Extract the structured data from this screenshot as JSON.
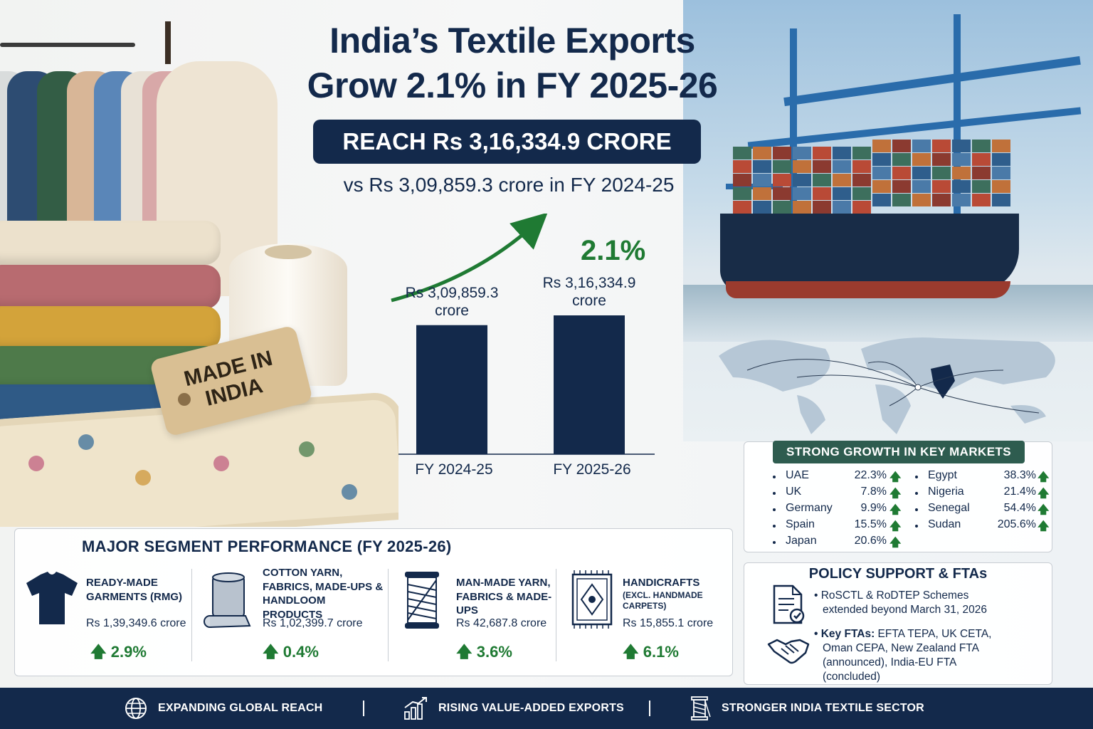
{
  "headline": {
    "title_line1": "India’s Textile Exports",
    "title_line2": "Grow 2.1% in FY 2025-26",
    "reach": "REACH Rs 3,16,334.9 CRORE",
    "comparison": "vs Rs 3,09,859.3 crore in FY 2024-25"
  },
  "tag": {
    "line1": "MADE IN",
    "line2": "INDIA"
  },
  "chart_data": {
    "type": "bar",
    "categories": [
      "FY 2024-25",
      "FY 2025-26"
    ],
    "values": [
      309859.3,
      316334.9
    ],
    "value_labels": [
      "Rs 3,09,859.3 crore",
      "Rs 3,16,334.9 crore"
    ],
    "value_labels_line1": [
      "Rs 3,09,859.3",
      "Rs 3,16,334.9"
    ],
    "value_labels_line2": [
      "crore",
      "crore"
    ],
    "growth_label": "2.1%",
    "growth_color": "#1f7a33",
    "bar_color": "#13294b"
  },
  "segments": {
    "title": "MAJOR SEGMENT PERFORMANCE  (FY 2025-26)",
    "items": [
      {
        "icon": "tshirt-icon",
        "name_line1": "READY-MADE",
        "name_line2": "GARMENTS (RMG)",
        "name_line3": "",
        "value": "Rs 1,39,349.6 crore",
        "growth": "2.9%"
      },
      {
        "icon": "fabric-roll-icon",
        "name_line1": "COTTON YARN,",
        "name_line2": "FABRICS, MADE-UPS &",
        "name_line3": "HANDLOOM PRODUCTS",
        "value": "Rs 1,02,399.7 crore",
        "growth": "0.4%"
      },
      {
        "icon": "yarn-spool-icon",
        "name_line1": "MAN-MADE YARN,",
        "name_line2": "FABRICS & MADE-UPS",
        "name_line3": "",
        "value": "Rs 42,687.8 crore",
        "growth": "3.6%"
      },
      {
        "icon": "carpet-icon",
        "name_line1": "HANDICRAFTS",
        "name_line2": "(EXCL. HANDMADE CARPETS)",
        "name_line3": "",
        "value": "Rs 15,855.1 crore",
        "growth": "6.1%"
      }
    ]
  },
  "markets": {
    "title": "STRONG GROWTH IN KEY MARKETS",
    "left": [
      {
        "name": "UAE",
        "pct": "22.3%"
      },
      {
        "name": "UK",
        "pct": "7.8%"
      },
      {
        "name": "Germany",
        "pct": "9.9%"
      },
      {
        "name": "Spain",
        "pct": "15.5%"
      },
      {
        "name": "Japan",
        "pct": "20.6%"
      }
    ],
    "right": [
      {
        "name": "Egypt",
        "pct": "38.3%"
      },
      {
        "name": "Nigeria",
        "pct": "21.4%"
      },
      {
        "name": "Senegal",
        "pct": "54.4%"
      },
      {
        "name": "Sudan",
        "pct": "205.6%"
      }
    ],
    "arrow": "🡅"
  },
  "policy": {
    "title": "POLICY SUPPORT & FTAs",
    "bullet1_line1": "• RoSCTL & RoDTEP Schemes",
    "bullet1_line2": "extended beyond March 31, 2026",
    "bullet2_bold": "• Key FTAs:",
    "bullet2_line1": " EFTA TEPA, UK CETA,",
    "bullet2_line2": "Oman CEPA, New Zealand FTA",
    "bullet2_line3": "(announced), India-EU FTA",
    "bullet2_line4": "(concluded)"
  },
  "footer": {
    "item1": "EXPANDING GLOBAL REACH",
    "item2": "RISING VALUE-ADDED EXPORTS",
    "item3": "STRONGER INDIA TEXTILE SECTOR"
  },
  "colors": {
    "navy": "#13294b",
    "green": "#1f7a33",
    "teal_header": "#2e5c4f"
  }
}
